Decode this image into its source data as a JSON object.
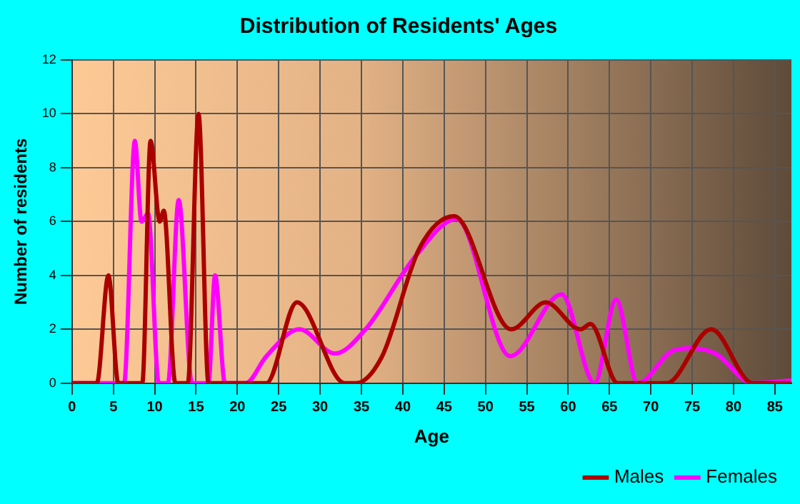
{
  "chart_data": {
    "type": "line",
    "title": "Distribution of Residents' Ages",
    "xlabel": "Age",
    "ylabel": "Number of residents",
    "xlim": [
      0,
      87
    ],
    "xticks": [
      0,
      5,
      10,
      15,
      20,
      25,
      30,
      35,
      40,
      45,
      50,
      55,
      60,
      65,
      70,
      75,
      80,
      85
    ],
    "ylim": [
      0,
      12
    ],
    "yticks": [
      0,
      2,
      4,
      6,
      8,
      10,
      12
    ],
    "grid": true,
    "legend": "bottom right",
    "marker": "none",
    "line_style": "solid",
    "series": [
      {
        "name": "Males",
        "color": "#aa0000",
        "x": [
          0,
          3,
          4.4,
          5.6,
          8.5,
          9.5,
          10.6,
          11.1,
          12.5,
          14,
          15.3,
          16.5,
          22,
          23.5,
          27.2,
          33,
          34.3,
          37.5,
          42,
          46.2,
          53.1,
          57.3,
          61.5,
          62.7,
          66,
          71.9,
          77.3,
          82.3,
          87
        ],
        "values": [
          0,
          0,
          4,
          0,
          0,
          9,
          6,
          6.4,
          0,
          0,
          10,
          0,
          0,
          0,
          3,
          0,
          0,
          1,
          5,
          6.2,
          2,
          3,
          2,
          2.2,
          0,
          0,
          2,
          0,
          0
        ]
      },
      {
        "name": "Females",
        "color": "#ff00ff",
        "x": [
          0,
          6.3,
          7.6,
          8.4,
          9.2,
          10.5,
          11.6,
          12.9,
          14.5,
          16.5,
          17.3,
          18.5,
          21,
          23.5,
          27.5,
          31.8,
          35.5,
          41.5,
          46.5,
          53,
          59.2,
          63.2,
          65.8,
          68.4,
          72.6,
          74.8,
          77.8,
          82.3,
          87
        ],
        "values": [
          0,
          0,
          9,
          6,
          6.3,
          0,
          0,
          6.8,
          0,
          0,
          4,
          0,
          0,
          1,
          2,
          1.1,
          2,
          4.7,
          6.1,
          1,
          3.3,
          0,
          3.1,
          0,
          1.2,
          1.3,
          1.1,
          0,
          0.1
        ]
      }
    ]
  }
}
